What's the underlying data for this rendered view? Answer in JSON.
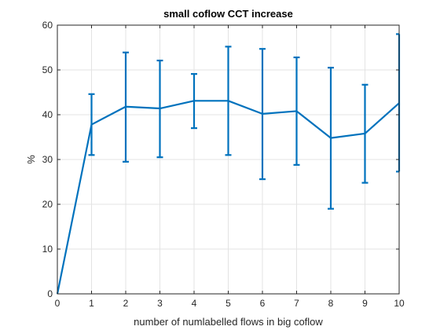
{
  "chart_data": {
    "type": "line",
    "title": "small coflow CCT increase",
    "xlabel": "number of numlabelled flows in big coflow",
    "ylabel": "%",
    "xlim": [
      0,
      10
    ],
    "ylim": [
      0,
      60
    ],
    "xticks": [
      0,
      1,
      2,
      3,
      4,
      5,
      6,
      7,
      8,
      9,
      10
    ],
    "yticks": [
      0,
      10,
      20,
      30,
      40,
      50,
      60
    ],
    "grid": true,
    "series_color": "#0072bd",
    "series": [
      {
        "x": [
          0,
          1,
          2,
          3,
          4,
          5,
          6,
          7,
          8,
          9,
          10
        ],
        "y": [
          0,
          37.8,
          41.8,
          41.4,
          43.1,
          43.1,
          40.2,
          40.8,
          34.8,
          35.8,
          42.6
        ],
        "err_low": [
          null,
          31.0,
          29.5,
          30.5,
          37.0,
          31.0,
          25.6,
          28.8,
          19.0,
          24.8,
          27.3
        ],
        "err_high": [
          null,
          44.6,
          53.9,
          52.1,
          49.1,
          55.2,
          54.7,
          52.8,
          50.5,
          46.7,
          58.0
        ]
      }
    ]
  }
}
